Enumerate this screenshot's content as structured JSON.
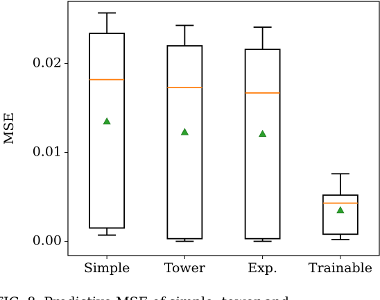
{
  "chart_data": {
    "type": "box",
    "ylabel": "MSE",
    "caption": "FIG. 8. Predictive MSE of simple, tower and",
    "categories": [
      "Simple",
      "Tower",
      "Exp.",
      "Trainable"
    ],
    "whislo": [
      0.0007,
      0.0,
      0.0,
      0.0002
    ],
    "q1": [
      0.0015,
      0.0003,
      0.0003,
      0.0008
    ],
    "median": [
      0.0182,
      0.0173,
      0.0167,
      0.0043
    ],
    "q3": [
      0.0234,
      0.022,
      0.0216,
      0.0052
    ],
    "whishi": [
      0.0257,
      0.0243,
      0.0241,
      0.0076
    ],
    "mean": [
      0.0135,
      0.0123,
      0.0121,
      0.0035
    ],
    "box_color": "#000000",
    "median_color": "#ff7f0e",
    "mean_color": "#2ca02c",
    "ylim": [
      -0.0016,
      0.027
    ],
    "yticks": [
      {
        "value": 0,
        "label": "0.00"
      },
      {
        "value": 0.01,
        "label": "0.01"
      },
      {
        "value": 0.02,
        "label": "0.02"
      }
    ],
    "grid": false
  }
}
